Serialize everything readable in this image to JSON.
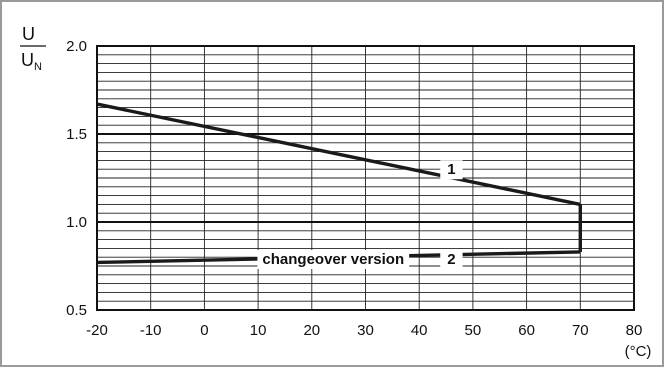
{
  "chart_data": {
    "type": "line",
    "title": "",
    "ylabel": {
      "numerator": "U",
      "denominator": "U",
      "denominator_subscript": "N"
    },
    "xunit": "(°C)",
    "xlim": [
      -20,
      80
    ],
    "ylim": [
      0.5,
      2.0
    ],
    "x_ticks": [
      "-20",
      "-10",
      "0",
      "10",
      "20",
      "30",
      "40",
      "50",
      "60",
      "70",
      "80"
    ],
    "y_ticks": [
      "0.5",
      "1.0",
      "1.5",
      "2.0"
    ],
    "x_tick_values": [
      -20,
      -10,
      0,
      10,
      20,
      30,
      40,
      50,
      60,
      70,
      80
    ],
    "y_tick_values": [
      0.5,
      1.0,
      1.5,
      2.0
    ],
    "grid": true,
    "series": [
      {
        "name": "1",
        "x": [
          -20,
          70
        ],
        "y": [
          1.67,
          1.1
        ]
      },
      {
        "name": "2",
        "x": [
          -20,
          70
        ],
        "y": [
          0.77,
          0.83
        ]
      },
      {
        "name": "",
        "x": [
          70,
          70
        ],
        "y": [
          0.83,
          1.1
        ]
      }
    ],
    "annotations": [
      {
        "text": "1",
        "x": 46,
        "y": 1.3
      },
      {
        "text": "2",
        "x": 46,
        "y": 0.79
      },
      {
        "text": "changeover version",
        "x": 24,
        "y": 0.79
      }
    ]
  }
}
